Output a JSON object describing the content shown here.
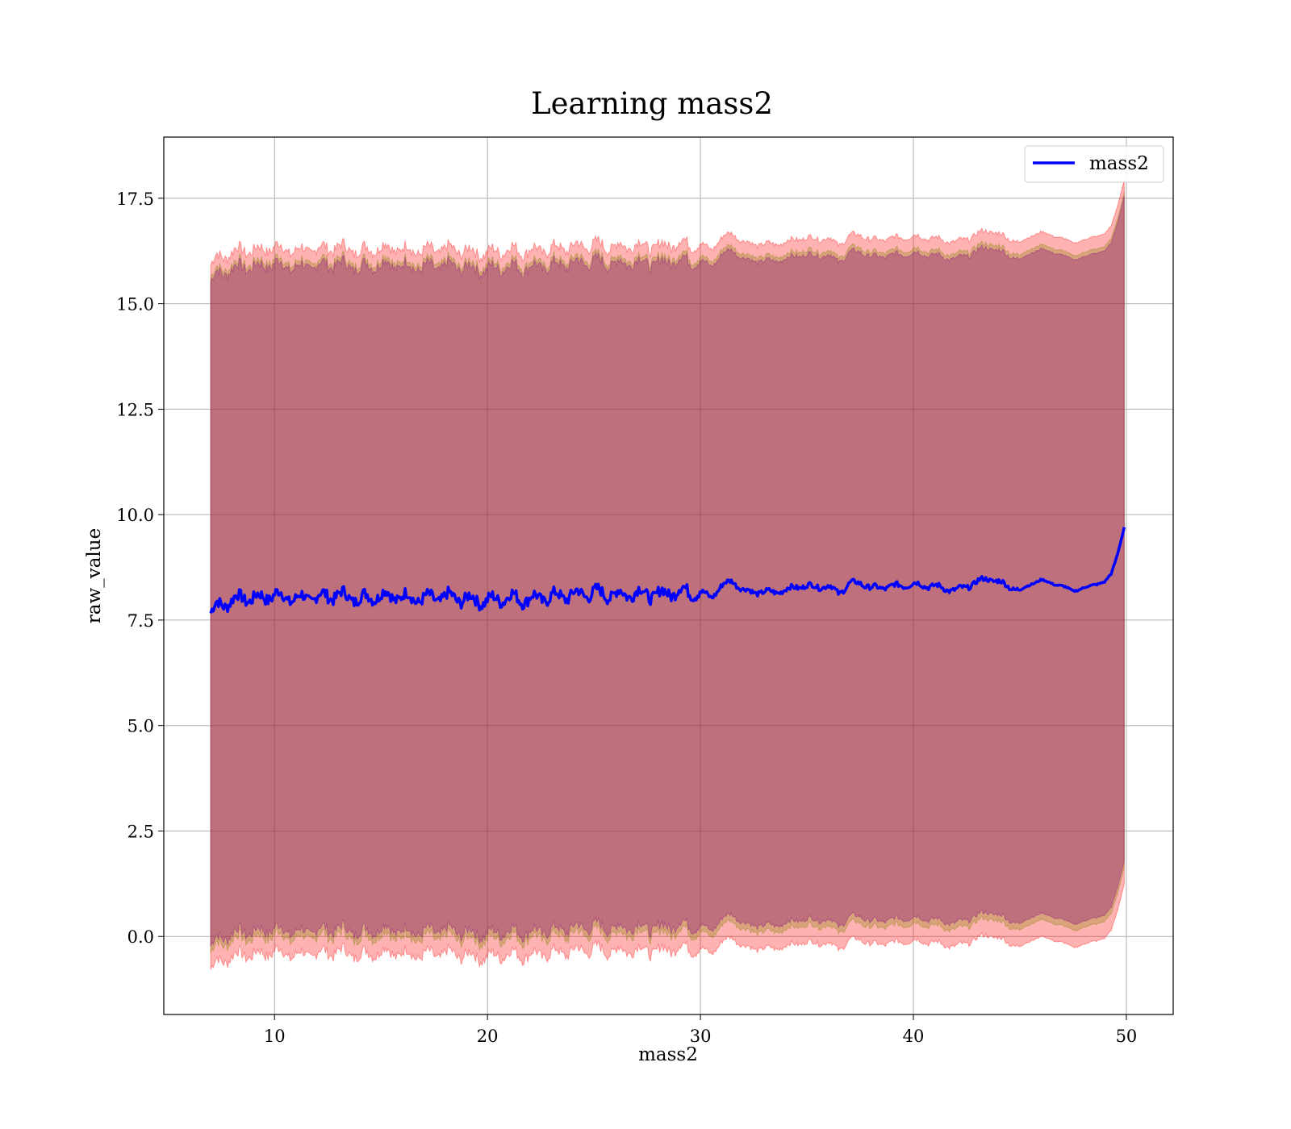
{
  "chart_data": {
    "type": "line",
    "title": "Learning mass2",
    "xlabel": "mass2",
    "ylabel": "raw_value",
    "xlim": [
      4.8,
      52.2
    ],
    "ylim": [
      -1.85,
      18.95
    ],
    "xticks": [
      10,
      20,
      30,
      40,
      50
    ],
    "xtick_labels": [
      "10",
      "20",
      "30",
      "40",
      "50"
    ],
    "yticks": [
      0.0,
      2.5,
      5.0,
      7.5,
      10.0,
      12.5,
      15.0,
      17.5
    ],
    "ytick_labels": [
      "0.0",
      "2.5",
      "5.0",
      "7.5",
      "10.0",
      "12.5",
      "15.0",
      "17.5"
    ],
    "grid": true,
    "legend_position": "top-right",
    "series": [
      {
        "name": "mass2",
        "color": "#0000ff",
        "x": [
          7.0,
          7.3,
          7.6,
          8.0,
          8.5,
          9.0,
          9.5,
          10.0,
          10.5,
          11.0,
          12.0,
          13.0,
          14.0,
          15.0,
          16.0,
          17.0,
          18.0,
          19.0,
          20.0,
          21.0,
          21.5,
          22.0,
          23.0,
          24.0,
          25.0,
          26.0,
          27.0,
          28.0,
          29.0,
          30.0,
          30.5,
          31.0,
          31.5,
          32.0,
          33.0,
          34.0,
          34.5,
          35.0,
          36.0,
          36.5,
          37.0,
          37.5,
          38.0,
          39.0,
          40.0,
          41.0,
          42.0,
          43.0,
          43.5,
          44.0,
          45.0,
          45.5,
          46.0,
          47.0,
          47.5,
          48.0,
          48.5,
          49.0,
          49.3,
          49.6,
          49.9
        ],
        "y": [
          7.65,
          7.85,
          7.9,
          7.95,
          8.05,
          8.0,
          8.05,
          8.1,
          8.05,
          8.0,
          8.05,
          8.1,
          8.0,
          8.1,
          8.05,
          8.0,
          8.05,
          8.0,
          7.95,
          8.05,
          8.0,
          8.0,
          8.05,
          8.1,
          8.15,
          8.1,
          8.15,
          8.1,
          8.2,
          8.15,
          8.05,
          8.3,
          8.45,
          8.2,
          8.15,
          8.2,
          8.3,
          8.3,
          8.3,
          8.15,
          8.35,
          8.4,
          8.25,
          8.3,
          8.35,
          8.3,
          8.2,
          8.4,
          8.5,
          8.4,
          8.2,
          8.35,
          8.45,
          8.3,
          8.2,
          8.25,
          8.35,
          8.4,
          8.6,
          9.1,
          9.7
        ]
      }
    ],
    "bands": [
      {
        "color": "#ff0000",
        "opacity": 0.3,
        "upper_offset": 8.25,
        "lower_offset": 8.45
      },
      {
        "color": "#808000",
        "opacity": 0.3,
        "upper_offset": 7.95,
        "lower_offset": 8.05
      },
      {
        "color": "#800080",
        "opacity": 0.3,
        "upper_offset": 7.85,
        "lower_offset": 7.9
      }
    ]
  }
}
